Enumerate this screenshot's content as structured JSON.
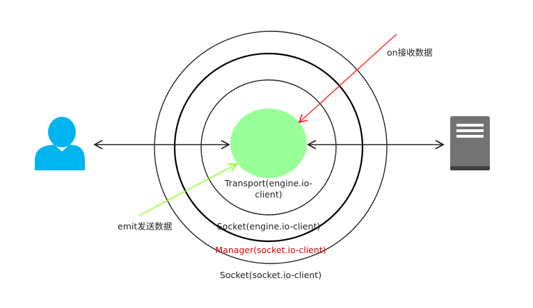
{
  "labels": {
    "on_receive": "on接收数据",
    "emit_send": "emit发送数据",
    "transport_line1": "Transport(engine.io-",
    "transport_line2": "client)",
    "socket_engine": "Socket(engine.io-client)",
    "manager": "Manager(socket.io-client)",
    "socket_socketio": "Socket(socket.io-client)"
  },
  "colors": {
    "user_icon": "#00b4f0",
    "server_icon": "#737373",
    "core": "#99ff99",
    "ring": "#222222",
    "receive_arrow": "#ff2a2a",
    "send_arrow": "#88ff22",
    "manager_text": "#dd0000",
    "text": "#222222"
  },
  "icons": {
    "user": "user-icon",
    "server": "server-icon"
  }
}
